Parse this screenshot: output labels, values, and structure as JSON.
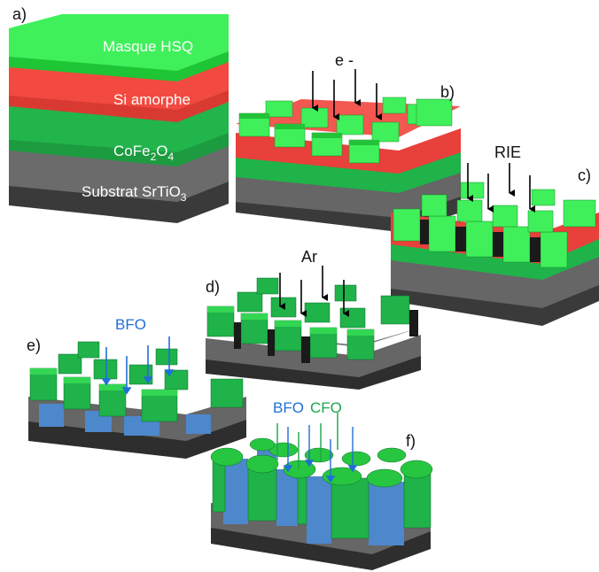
{
  "panels": {
    "a": "a)",
    "b": "b)",
    "c": "c)",
    "d": "d)",
    "e": "e)",
    "f": "f)"
  },
  "layers": {
    "hsq": "Masque HSQ",
    "si": "Si amorphe",
    "cfo_base": "CoFe",
    "cfo_sub1": "2",
    "cfo_mid": "O",
    "cfo_sub2": "4",
    "substrate_base": "Substrat SrTiO",
    "substrate_sub": "3"
  },
  "arrows": {
    "electron": "e -",
    "rie": "RIE",
    "argon": "Ar",
    "bfo_e": "BFO",
    "bfo_f": "BFO",
    "cfo_f": "CFO"
  },
  "colors": {
    "hsq_green": "#22e03a",
    "si_red": "#f24a40",
    "cfo_green": "#1fb34a",
    "substrate_grey": "#4a4a4a",
    "bfo_blue": "#4d88cc",
    "arrow_black": "#000000",
    "arrow_blue": "#1f6fd6",
    "arrow_green": "#1aa64a"
  }
}
